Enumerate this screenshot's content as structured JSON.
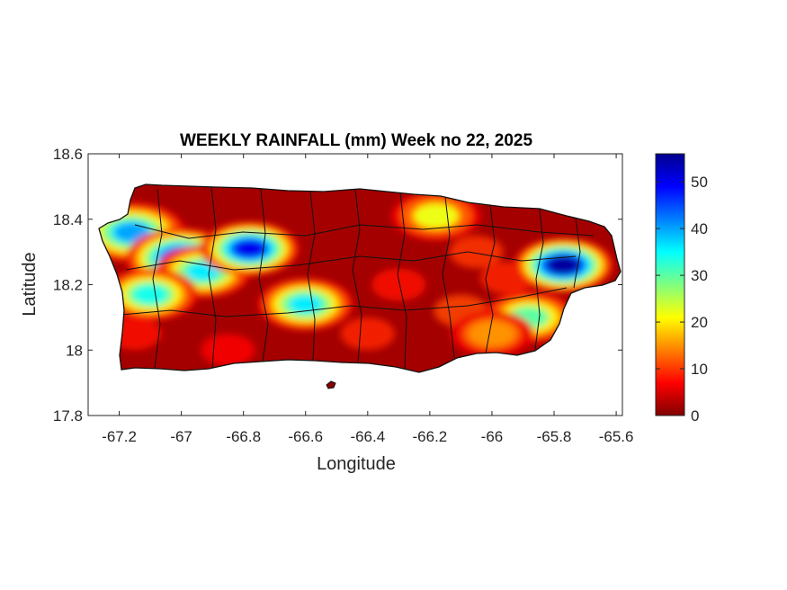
{
  "chart_data": {
    "type": "heatmap",
    "title": "WEEKLY RAINFALL (mm) Week no 22, 2025",
    "xlabel": "Longitude",
    "ylabel": "Latitude",
    "xlim": [
      -67.3,
      -65.58
    ],
    "ylim": [
      17.8,
      18.6
    ],
    "x_ticks": [
      -67.2,
      -67,
      -66.8,
      -66.6,
      -66.4,
      -66.2,
      -66,
      -65.8,
      -65.6
    ],
    "x_tick_labels": [
      "-67.2",
      "-67",
      "-66.8",
      "-66.6",
      "-66.4",
      "-66.2",
      "-66",
      "-65.8",
      "-65.6"
    ],
    "y_ticks": [
      17.8,
      18,
      18.2,
      18.4,
      18.6
    ],
    "y_tick_labels": [
      "17.8",
      "18",
      "18.2",
      "18.4",
      "18.6"
    ],
    "colorbar": {
      "range": [
        0,
        56
      ],
      "ticks": [
        0,
        10,
        20,
        30,
        40,
        50
      ],
      "tick_labels": [
        "0",
        "10",
        "20",
        "30",
        "40",
        "50"
      ],
      "colormap": "jet"
    },
    "background_value": 2,
    "rain_cells": [
      {
        "lon": -67.16,
        "lat": 18.36,
        "value": 40
      },
      {
        "lon": -67.0,
        "lat": 18.28,
        "value": 52
      },
      {
        "lon": -66.93,
        "lat": 18.24,
        "value": 36
      },
      {
        "lon": -67.1,
        "lat": 18.17,
        "value": 34
      },
      {
        "lon": -66.78,
        "lat": 18.31,
        "value": 50
      },
      {
        "lon": -66.6,
        "lat": 18.14,
        "value": 36
      },
      {
        "lon": -66.18,
        "lat": 18.41,
        "value": 22
      },
      {
        "lon": -65.77,
        "lat": 18.26,
        "value": 55
      },
      {
        "lon": -65.88,
        "lat": 18.1,
        "value": 30
      },
      {
        "lon": -66.0,
        "lat": 18.05,
        "value": 15
      }
    ]
  }
}
